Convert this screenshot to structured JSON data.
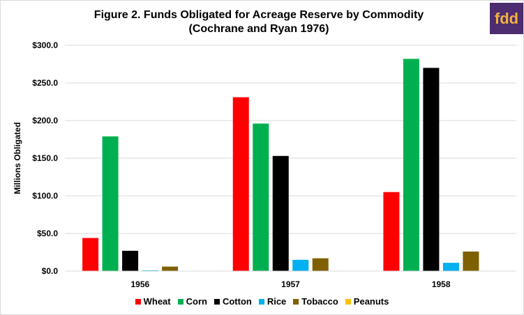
{
  "chart_data": {
    "type": "bar",
    "title_line1": "Figure 2. Funds Obligated for Acreage Reserve by Commodity",
    "title_line2": "(Cochrane and Ryan 1976)",
    "ylabel": "Millions Obligated",
    "xlabel": "",
    "categories": [
      "1956",
      "1957",
      "1958"
    ],
    "ylim": [
      0,
      300
    ],
    "yticks": [
      "$0.0",
      "$50.0",
      "$100.0",
      "$150.0",
      "$200.0",
      "$250.0",
      "$300.0"
    ],
    "ytick_values": [
      0,
      50,
      100,
      150,
      200,
      250,
      300
    ],
    "grid": true,
    "legend_position": "bottom",
    "series": [
      {
        "name": "Wheat",
        "color": "#ff0000",
        "values": [
          44,
          231,
          105
        ]
      },
      {
        "name": "Corn",
        "color": "#00b050",
        "values": [
          179,
          196,
          282
        ]
      },
      {
        "name": "Cotton",
        "color": "#000000",
        "values": [
          27,
          153,
          270
        ]
      },
      {
        "name": "Rice",
        "color": "#00b0f0",
        "values": [
          1,
          15,
          11
        ]
      },
      {
        "name": "Tobacco",
        "color": "#7f6000",
        "values": [
          6,
          17,
          26
        ]
      },
      {
        "name": "Peanuts",
        "color": "#ffc000",
        "values": [
          0,
          0,
          0
        ]
      }
    ]
  },
  "logo": {
    "text": "fdd",
    "icon": "fdd-logo",
    "background": "#4d2c6f",
    "color": "#f2b33d"
  }
}
